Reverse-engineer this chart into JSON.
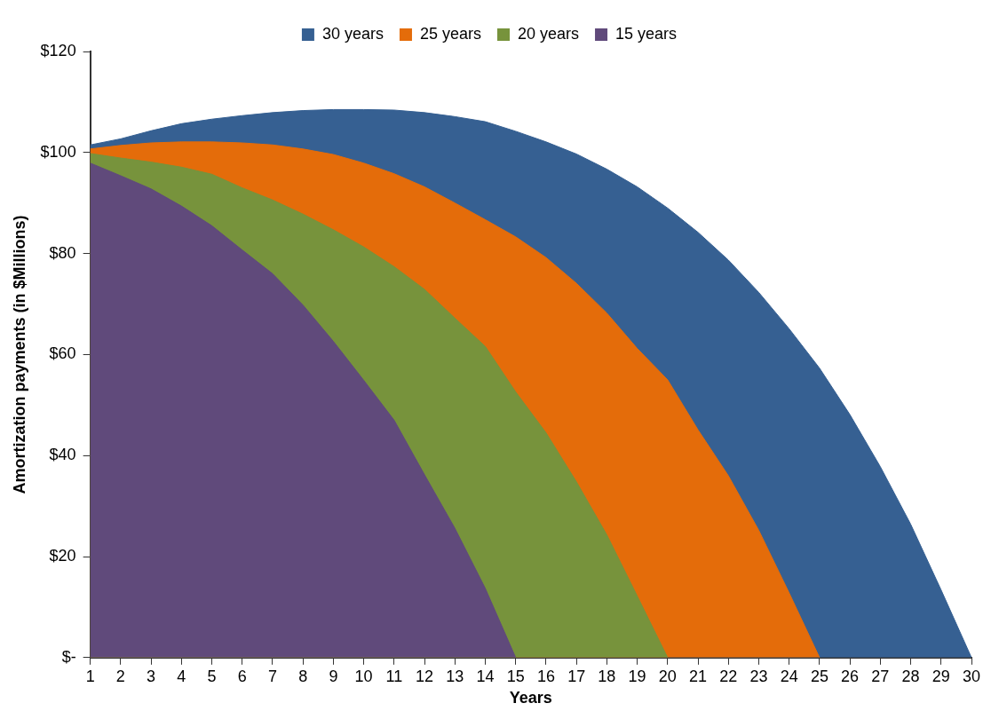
{
  "chart_data": {
    "type": "area",
    "xlabel": "Years",
    "ylabel": "Amortization payments (in $Millions)",
    "x": [
      1,
      2,
      3,
      4,
      5,
      6,
      7,
      8,
      9,
      10,
      11,
      12,
      13,
      14,
      15,
      16,
      17,
      18,
      19,
      20,
      21,
      22,
      23,
      24,
      25,
      26,
      27,
      28,
      29,
      30
    ],
    "series": [
      {
        "name": "30 years",
        "color": "#366092",
        "values": [
          101.5,
          102.7,
          104.3,
          105.7,
          106.6,
          107.3,
          107.9,
          108.3,
          108.5,
          108.5,
          108.4,
          107.9,
          107.1,
          106.1,
          104.2,
          102.1,
          99.7,
          96.7,
          93.2,
          89.0,
          84.2,
          78.7,
          72.3,
          65.1,
          57.3,
          48.1,
          37.8,
          26.4,
          13.4,
          0
        ]
      },
      {
        "name": "25 years",
        "color": "#e46c0a",
        "x": [
          1,
          2,
          3,
          4,
          5,
          6,
          7,
          8,
          9,
          10,
          11,
          12,
          13,
          14,
          15,
          16,
          17,
          18,
          19,
          20,
          21,
          22,
          23,
          24,
          25
        ],
        "values": [
          100.7,
          101.4,
          101.9,
          102.1,
          102.1,
          101.9,
          101.5,
          100.7,
          99.6,
          97.9,
          95.8,
          93.2,
          90.0,
          86.7,
          83.3,
          79.2,
          74.1,
          68.2,
          61.2,
          55.0,
          45.1,
          36.0,
          25.2,
          12.8,
          0
        ]
      },
      {
        "name": "20 years",
        "color": "#77933c",
        "x": [
          1,
          2,
          3,
          4,
          5,
          6,
          7,
          8,
          9,
          10,
          11,
          12,
          13,
          14,
          15,
          16,
          17,
          18,
          19,
          20
        ],
        "values": [
          99.8,
          98.9,
          98.1,
          97.1,
          95.7,
          93.0,
          90.6,
          87.8,
          84.7,
          81.3,
          77.4,
          72.9,
          67.2,
          61.6,
          52.6,
          44.5,
          34.8,
          24.3,
          12.2,
          0
        ]
      },
      {
        "name": "15 years",
        "color": "#604a7b",
        "x": [
          1,
          2,
          3,
          4,
          5,
          6,
          7,
          8,
          9,
          10,
          11,
          12,
          13,
          14,
          15
        ],
        "values": [
          97.9,
          95.4,
          92.8,
          89.4,
          85.5,
          80.7,
          76.0,
          69.8,
          62.6,
          54.9,
          47.0,
          36.2,
          25.6,
          13.7,
          0
        ]
      }
    ],
    "xlim": [
      1,
      30
    ],
    "xticks": [
      1,
      2,
      3,
      4,
      5,
      6,
      7,
      8,
      9,
      10,
      11,
      12,
      13,
      14,
      15,
      16,
      17,
      18,
      19,
      20,
      21,
      22,
      23,
      24,
      25,
      26,
      27,
      28,
      29,
      30
    ],
    "ylim": [
      0,
      120
    ],
    "yticks": [
      {
        "value": 0,
        "label": "$-"
      },
      {
        "value": 20,
        "label": "$20"
      },
      {
        "value": 40,
        "label": "$40"
      },
      {
        "value": 60,
        "label": "$60"
      },
      {
        "value": 80,
        "label": "$80"
      },
      {
        "value": 100,
        "label": "$100"
      },
      {
        "value": 120,
        "label": "$120"
      }
    ],
    "grid": false,
    "legend": "top"
  }
}
